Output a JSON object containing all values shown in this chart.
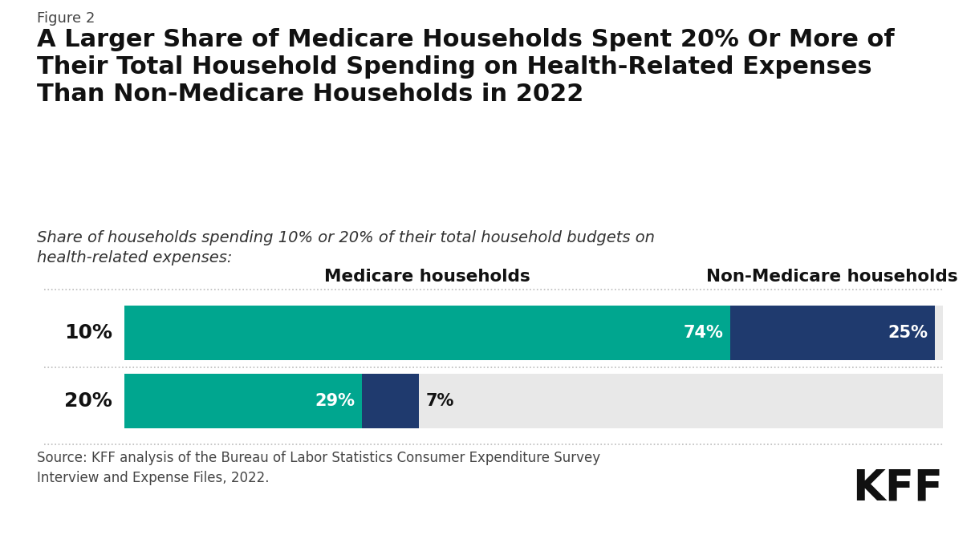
{
  "figure_label": "Figure 2",
  "title": "A Larger Share of Medicare Households Spent 20% Or More of\nTheir Total Household Spending on Health-Related Expenses\nThan Non-Medicare Households in 2022",
  "subtitle": "Share of households spending 10% or 20% of their total household budgets on\nhealth-related expenses:",
  "source": "Source: KFF analysis of the Bureau of Labor Statistics Consumer Expenditure Survey\nInterview and Expense Files, 2022.",
  "col_headers": [
    "Medicare households",
    "Non-Medicare households"
  ],
  "row_labels": [
    "10%",
    "20%"
  ],
  "medicare_values": [
    74,
    29
  ],
  "non_medicare_values": [
    25,
    7
  ],
  "medicare_color": "#00a68f",
  "non_medicare_color": "#1f3a6e",
  "bar_background": "#e8e8e8",
  "background_color": "#ffffff",
  "kff_logo": "KFF"
}
